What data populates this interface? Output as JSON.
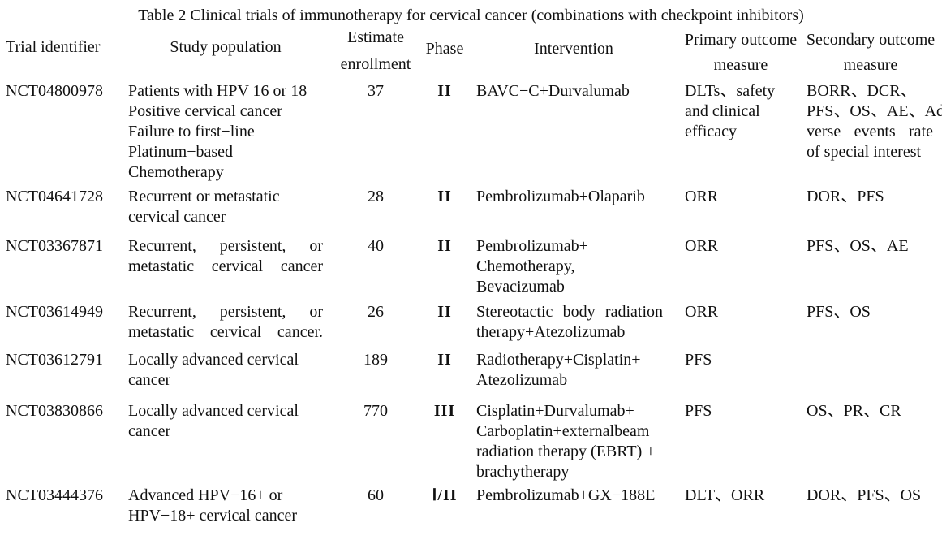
{
  "title": "Table 2  Clinical trials of immunotherapy for cervical cancer (combinations with checkpoint inhibitors)",
  "headers": {
    "trial": "Trial identifier",
    "population": "Study population",
    "enroll_1": "Estimate",
    "enroll_2": "enrollment",
    "phase": "Phase",
    "intervention": "Intervention",
    "primary_1": "Primary outcome",
    "primary_2": "measure",
    "secondary_1": "Secondary outcome",
    "secondary_2": "measure"
  },
  "rows": [
    {
      "trial": "NCT04800978",
      "population": [
        "Patients with HPV 16 or 18",
        "Positive cervical cancer",
        "Failure to first−line",
        "Platinum−based",
        "Chemotherapy"
      ],
      "enrollment": "37",
      "phase": "II",
      "intervention": [
        "BAVC−C+Durvalumab"
      ],
      "primary": [
        "DLTs、safety",
        "and clinical",
        "efficacy"
      ],
      "secondary": [
        "BORR、DCR、",
        "PFS、OS、AE、Ad−",
        "verse events rate",
        "of special interest"
      ]
    },
    {
      "trial": "NCT04641728",
      "population": [
        "Recurrent or metastatic",
        "cervical cancer"
      ],
      "enrollment": "28",
      "phase": "II",
      "intervention": [
        "Pembrolizumab+Olaparib"
      ],
      "primary": [
        "ORR"
      ],
      "secondary": [
        "DOR、PFS"
      ]
    },
    {
      "trial": "NCT03367871",
      "population": [
        "Recurrent, persistent, or",
        "metastatic cervical cancer"
      ],
      "enrollment": "40",
      "phase": "II",
      "intervention": [
        "Pembrolizumab+",
        "Chemotherapy,",
        "Bevacizumab"
      ],
      "primary": [
        "ORR"
      ],
      "secondary": [
        "PFS、OS、AE"
      ]
    },
    {
      "trial": "NCT03614949",
      "population": [
        "Recurrent, persistent, or",
        "metastatic cervical cancer."
      ],
      "enrollment": "26",
      "phase": "II",
      "intervention": [
        "Stereotactic body radiation",
        "therapy+Atezolizumab"
      ],
      "primary": [
        "ORR"
      ],
      "secondary": [
        "PFS、OS"
      ]
    },
    {
      "trial": "NCT03612791",
      "population": [
        "Locally advanced cervical",
        "cancer"
      ],
      "enrollment": "189",
      "phase": "II",
      "intervention": [
        "Radiotherapy+Cisplatin+",
        "Atezolizumab"
      ],
      "primary": [
        "PFS"
      ],
      "secondary": []
    },
    {
      "trial": "NCT03830866",
      "population": [
        "Locally advanced cervical",
        "cancer"
      ],
      "enrollment": "770",
      "phase": "III",
      "intervention": [
        "Cisplatin+Durvalumab+",
        "Carboplatin+externalbeam",
        "radiation therapy (EBRT) +",
        "brachytherapy"
      ],
      "primary": [
        "PFS"
      ],
      "secondary": [
        "OS、PR、CR"
      ]
    },
    {
      "trial": "NCT03444376",
      "population": [
        "Advanced HPV−16+ or",
        "HPV−18+ cervical cancer"
      ],
      "enrollment": "60",
      "phase": "Ⅰ/II",
      "intervention": [
        "Pembrolizumab+GX−188E"
      ],
      "primary": [
        "DLT、ORR"
      ],
      "secondary": [
        "DOR、PFS、OS"
      ]
    }
  ]
}
